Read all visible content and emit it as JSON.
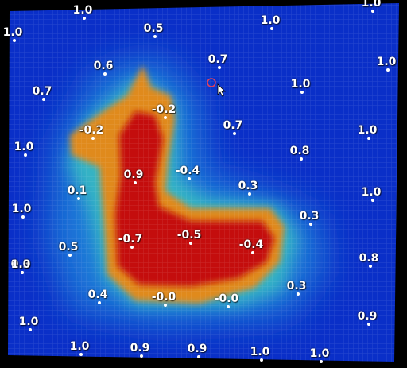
{
  "chart_data": {
    "type": "heatmap",
    "title": "",
    "xlabel": "",
    "ylabel": "",
    "grid": true,
    "colors": {
      "low": "#0a2fc8",
      "mid": "#2fb0c8",
      "warm": "#e08a1a",
      "hot": "#c41010",
      "frame": "#000000",
      "cursor_ring": "#e04060",
      "gridline": "#ffffff"
    },
    "probes": [
      {
        "value": "1.0"
      },
      {
        "value": "1.0"
      },
      {
        "value": "1.0"
      },
      {
        "value": "1.0"
      },
      {
        "value": "0.5"
      },
      {
        "value": "1.0"
      },
      {
        "value": "0.6"
      },
      {
        "value": "0.7"
      },
      {
        "value": "1.0"
      },
      {
        "value": "0.7"
      },
      {
        "value": "1.0"
      },
      {
        "value": "-0.2"
      },
      {
        "value": "-0.2"
      },
      {
        "value": "0.7"
      },
      {
        "value": "1.0"
      },
      {
        "value": "0.8"
      },
      {
        "value": "0.9"
      },
      {
        "value": "-0.4"
      },
      {
        "value": "0.1"
      },
      {
        "value": "0.3"
      },
      {
        "value": "0.3"
      },
      {
        "value": "1.0"
      },
      {
        "value": "1.0"
      },
      {
        "value": "0.3"
      },
      {
        "value": "-0.7"
      },
      {
        "value": "-0.5"
      },
      {
        "value": "-0.4"
      },
      {
        "value": "0.5"
      },
      {
        "value": "0.8"
      },
      {
        "value": "1.0"
      },
      {
        "value": "0.3"
      },
      {
        "value": "0.4"
      },
      {
        "value": "-0.0"
      },
      {
        "value": "-0.0"
      },
      {
        "value": "1.0"
      },
      {
        "value": "0.9"
      },
      {
        "value": "1.0"
      },
      {
        "value": "0.9"
      },
      {
        "value": "0.9"
      },
      {
        "value": "1.0"
      },
      {
        "value": "1.0"
      }
    ]
  },
  "cursor": {
    "icon": "mouse-pointer-icon",
    "ring_icon": "target-ring-icon"
  }
}
